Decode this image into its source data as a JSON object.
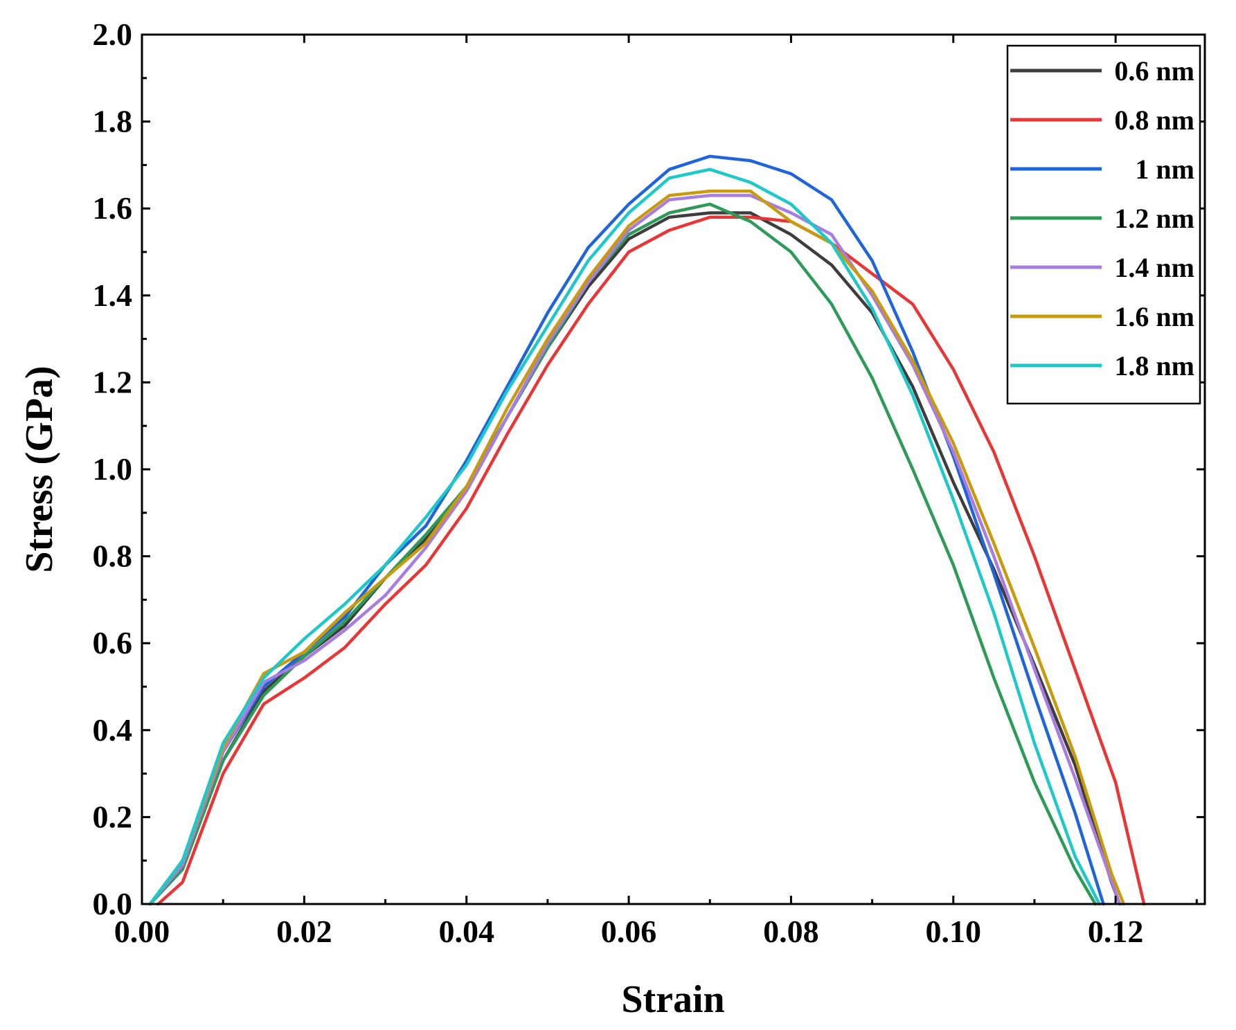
{
  "chart_data": {
    "type": "line",
    "title": "",
    "xlabel": "Strain",
    "ylabel": "Stress (GPa)",
    "xlim": [
      0,
      0.131
    ],
    "ylim": [
      0,
      2.0
    ],
    "xticks": [
      0.0,
      0.02,
      0.04,
      0.06,
      0.08,
      0.1,
      0.12
    ],
    "xtick_labels": [
      "0.00",
      "0.02",
      "0.04",
      "0.06",
      "0.08",
      "0.10",
      "0.12"
    ],
    "yticks": [
      0.0,
      0.2,
      0.4,
      0.6,
      0.8,
      1.0,
      1.2,
      1.4,
      1.6,
      1.8,
      2.0
    ],
    "ytick_labels": [
      "0.0",
      "0.2",
      "0.4",
      "0.6",
      "0.8",
      "1.0",
      "1.2",
      "1.4",
      "1.6",
      "1.8",
      "2.0"
    ],
    "grid": false,
    "legend_position": "top-right",
    "series": [
      {
        "name": "0.6 nm",
        "color": "#3d3d3d",
        "x": [
          0.001,
          0.005,
          0.01,
          0.015,
          0.02,
          0.025,
          0.03,
          0.035,
          0.04,
          0.045,
          0.05,
          0.055,
          0.06,
          0.065,
          0.07,
          0.075,
          0.08,
          0.085,
          0.09,
          0.095,
          0.1,
          0.105,
          0.11,
          0.115,
          0.1195,
          0.1205
        ],
        "y": [
          0.0,
          0.08,
          0.33,
          0.49,
          0.57,
          0.64,
          0.75,
          0.84,
          0.95,
          1.12,
          1.28,
          1.42,
          1.53,
          1.58,
          1.59,
          1.59,
          1.54,
          1.47,
          1.36,
          1.19,
          0.97,
          0.77,
          0.55,
          0.32,
          0.05,
          0.0
        ]
      },
      {
        "name": "0.8 nm",
        "color": "#e83535",
        "x": [
          0.002,
          0.005,
          0.01,
          0.015,
          0.02,
          0.025,
          0.03,
          0.035,
          0.04,
          0.045,
          0.05,
          0.055,
          0.06,
          0.065,
          0.07,
          0.075,
          0.08,
          0.085,
          0.09,
          0.095,
          0.1,
          0.105,
          0.11,
          0.115,
          0.12,
          0.1235
        ],
        "y": [
          0.0,
          0.05,
          0.3,
          0.46,
          0.52,
          0.59,
          0.69,
          0.78,
          0.91,
          1.08,
          1.24,
          1.38,
          1.5,
          1.55,
          1.58,
          1.58,
          1.57,
          1.52,
          1.45,
          1.38,
          1.23,
          1.04,
          0.8,
          0.54,
          0.28,
          0.0
        ]
      },
      {
        "name": "1 nm",
        "color": "#1f64d8",
        "x": [
          0.001,
          0.005,
          0.01,
          0.015,
          0.02,
          0.025,
          0.03,
          0.035,
          0.04,
          0.045,
          0.05,
          0.055,
          0.06,
          0.065,
          0.07,
          0.075,
          0.08,
          0.085,
          0.09,
          0.095,
          0.1,
          0.105,
          0.11,
          0.115,
          0.1185
        ],
        "y": [
          0.0,
          0.09,
          0.35,
          0.5,
          0.58,
          0.66,
          0.78,
          0.87,
          1.02,
          1.19,
          1.36,
          1.51,
          1.61,
          1.69,
          1.72,
          1.71,
          1.68,
          1.62,
          1.48,
          1.27,
          1.03,
          0.76,
          0.48,
          0.21,
          0.0
        ]
      },
      {
        "name": "1.2 nm",
        "color": "#2e9a5a",
        "x": [
          0.001,
          0.005,
          0.01,
          0.015,
          0.02,
          0.025,
          0.03,
          0.035,
          0.04,
          0.045,
          0.05,
          0.055,
          0.06,
          0.065,
          0.07,
          0.075,
          0.08,
          0.085,
          0.09,
          0.095,
          0.1,
          0.105,
          0.11,
          0.115,
          0.1175
        ],
        "y": [
          0.0,
          0.08,
          0.33,
          0.48,
          0.57,
          0.65,
          0.75,
          0.85,
          0.96,
          1.12,
          1.28,
          1.43,
          1.54,
          1.59,
          1.61,
          1.57,
          1.5,
          1.38,
          1.21,
          1.0,
          0.78,
          0.52,
          0.28,
          0.08,
          0.0
        ]
      },
      {
        "name": "1.4 nm",
        "color": "#a77de0",
        "x": [
          0.001,
          0.005,
          0.01,
          0.015,
          0.02,
          0.025,
          0.03,
          0.035,
          0.04,
          0.045,
          0.05,
          0.055,
          0.06,
          0.065,
          0.07,
          0.075,
          0.08,
          0.085,
          0.09,
          0.095,
          0.1,
          0.105,
          0.11,
          0.115,
          0.1205
        ],
        "y": [
          0.0,
          0.09,
          0.35,
          0.51,
          0.56,
          0.63,
          0.71,
          0.82,
          0.95,
          1.12,
          1.29,
          1.43,
          1.55,
          1.62,
          1.63,
          1.63,
          1.59,
          1.54,
          1.4,
          1.24,
          1.04,
          0.8,
          0.54,
          0.29,
          0.0
        ]
      },
      {
        "name": "1.6 nm",
        "color": "#c89b0e",
        "x": [
          0.001,
          0.005,
          0.01,
          0.015,
          0.02,
          0.025,
          0.03,
          0.035,
          0.04,
          0.045,
          0.05,
          0.055,
          0.06,
          0.065,
          0.07,
          0.075,
          0.08,
          0.085,
          0.09,
          0.095,
          0.1,
          0.105,
          0.11,
          0.115,
          0.1195,
          0.121
        ],
        "y": [
          0.0,
          0.1,
          0.36,
          0.53,
          0.58,
          0.67,
          0.75,
          0.83,
          0.96,
          1.14,
          1.3,
          1.44,
          1.56,
          1.63,
          1.64,
          1.64,
          1.57,
          1.52,
          1.41,
          1.25,
          1.06,
          0.83,
          0.59,
          0.34,
          0.07,
          0.0
        ]
      },
      {
        "name": "1.8 nm",
        "color": "#1fc8c8",
        "x": [
          0.001,
          0.005,
          0.01,
          0.015,
          0.02,
          0.025,
          0.03,
          0.035,
          0.04,
          0.045,
          0.05,
          0.055,
          0.06,
          0.065,
          0.07,
          0.075,
          0.08,
          0.085,
          0.09,
          0.095,
          0.1,
          0.105,
          0.11,
          0.115,
          0.118
        ],
        "y": [
          0.0,
          0.1,
          0.37,
          0.52,
          0.61,
          0.69,
          0.78,
          0.89,
          1.01,
          1.18,
          1.33,
          1.48,
          1.59,
          1.67,
          1.69,
          1.66,
          1.61,
          1.52,
          1.37,
          1.17,
          0.93,
          0.67,
          0.37,
          0.11,
          0.0
        ]
      }
    ]
  }
}
